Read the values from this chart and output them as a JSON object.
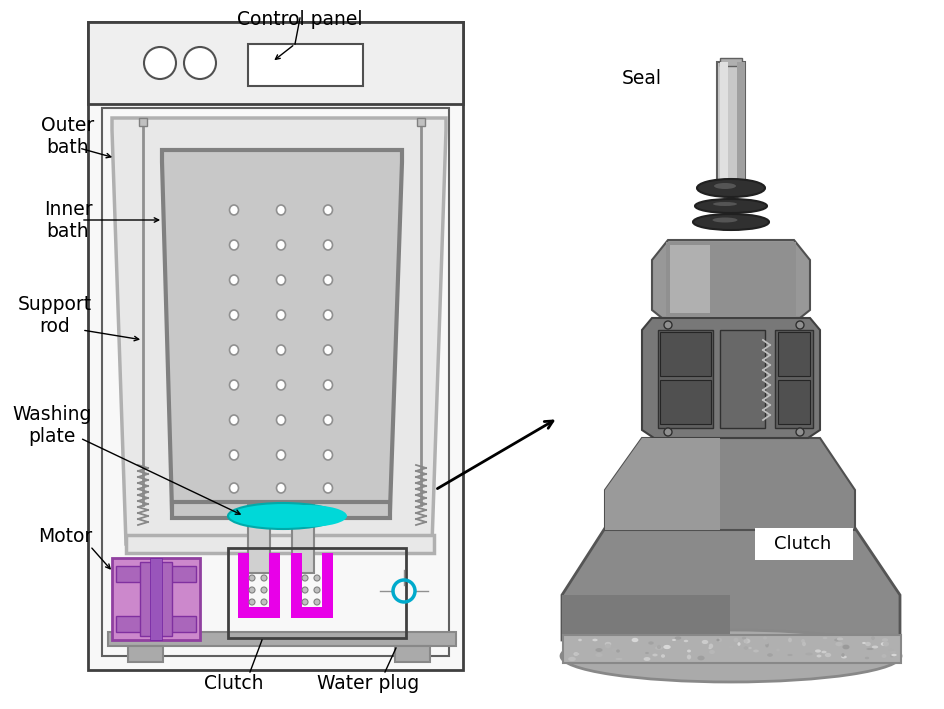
{
  "fig_width": 9.45,
  "fig_height": 7.09,
  "bg_color": "#ffffff",
  "labels": {
    "control_panel": "Control panel",
    "outer_bath": "Outer\nbath",
    "inner_bath": "Inner\nbath",
    "support_rod": "Support\nrod",
    "washing_plate": "Washing\nplate",
    "motor": "Motor",
    "clutch_bottom": "Clutch",
    "water_plug": "Water plug",
    "seal": "Seal",
    "clutch_right": "Clutch"
  },
  "colors": {
    "machine_outline": "#404040",
    "panel_fill": "#f8f8f8",
    "outer_tub_ec": "#b0b0b0",
    "outer_tub_fc": "#e0e0e0",
    "inner_tub_ec": "#808080",
    "inner_tub_fc": "#c0c0c0",
    "dot_ec": "#909090",
    "rod_color": "#909090",
    "spring_color": "#808080",
    "cyan_wash": "#00d0d0",
    "magenta_clutch": "#e800e8",
    "motor_fc": "#b060c0",
    "motor_ec": "#9040a0",
    "base_fc": "#aaaaaa",
    "base_ec": "#888888",
    "white": "#ffffff",
    "black": "#000000"
  }
}
